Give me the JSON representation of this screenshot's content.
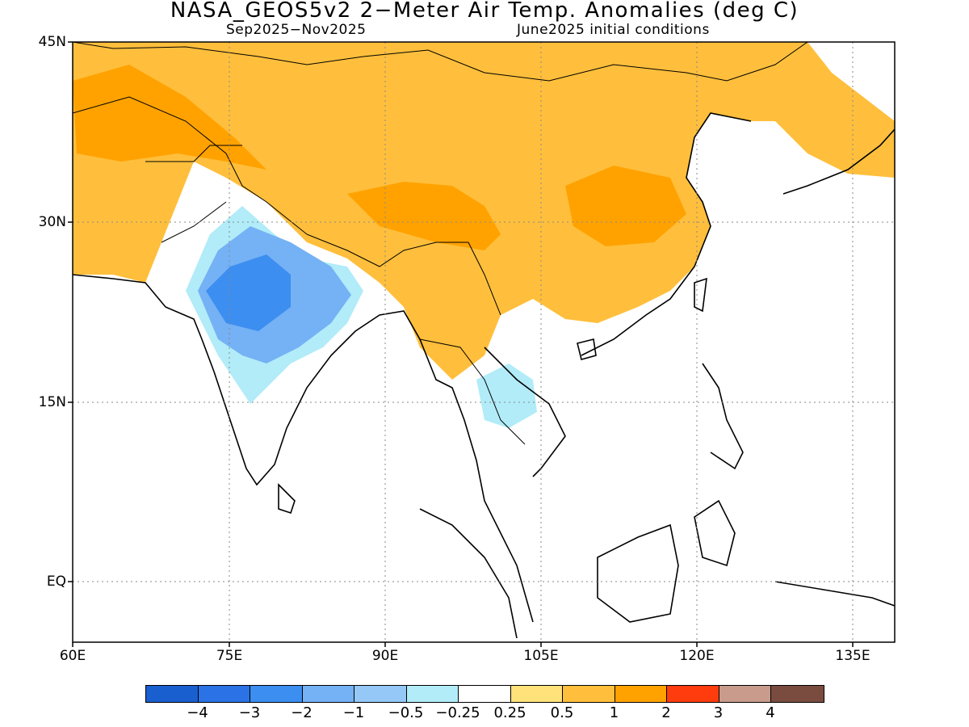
{
  "title": "NASA_GEOS5v2 2−Meter Air Temp. Anomalies (deg C)",
  "subtitle_left": "Sep2025−Nov2025",
  "subtitle_right": "June2025 initial conditions",
  "lat_labels": [
    "45N",
    "30N",
    "15N",
    "EQ"
  ],
  "lon_labels": [
    "60E",
    "75E",
    "90E",
    "105E",
    "120E",
    "135E"
  ],
  "colorbar": {
    "colors": [
      "#1a5fd0",
      "#2a72e6",
      "#3c8ef0",
      "#75b1f5",
      "#95c8f7",
      "#b1ecf8",
      "#ffffff",
      "#ffe27a",
      "#ffbf3c",
      "#ffa200",
      "#ff3c0d",
      "#c89b8d",
      "#7a4c40"
    ],
    "labels": [
      "−4",
      "−3",
      "−2",
      "−1",
      "−0.5",
      "−0.25",
      "0.25",
      "0.5",
      "1",
      "2",
      "3",
      "4"
    ]
  }
}
